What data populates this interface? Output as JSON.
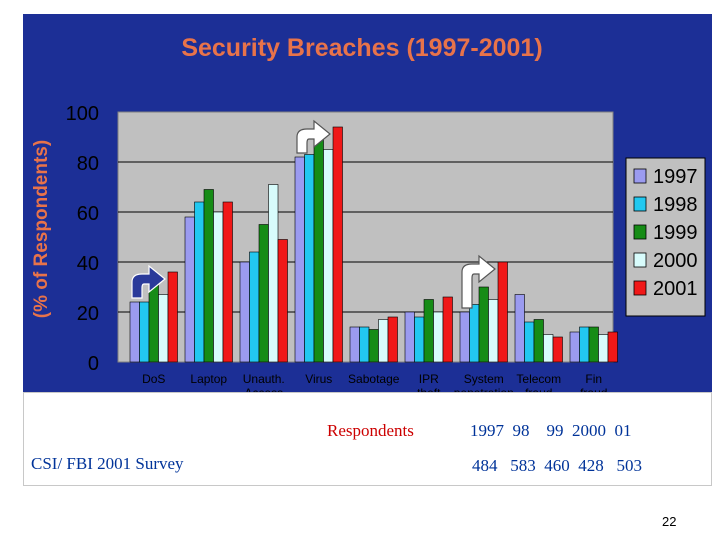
{
  "slide": {
    "respondents_label": "Respondents",
    "respondents_years": "1997  98    99  2000  01",
    "respondents_counts": "484   583  460  428   503",
    "survey_label": "CSI/ FBI 2001 Survey",
    "page_number": "22"
  },
  "colors": {
    "panel_bg": "#1c2f96",
    "plot_bg": "#c0c0c0",
    "title": "#e8734a",
    "ylabel": "#e8734a",
    "tick_text": "#000000",
    "series": [
      "#9b9bf0",
      "#22c8f0",
      "#168c16",
      "#d8fcfc",
      "#f01818"
    ],
    "arrow_dark": "#2a3a9a",
    "arrow_light": "#ffffff"
  },
  "chart_data": {
    "type": "bar",
    "title": "Security Breaches (1997-2001)",
    "ylabel": "(% of Respondents)",
    "xlabel": "",
    "ylim": [
      0,
      100
    ],
    "yticks": [
      0,
      20,
      40,
      60,
      80,
      100
    ],
    "grid": true,
    "legend_position": "right",
    "categories": [
      [
        "DoS"
      ],
      [
        "Laptop"
      ],
      [
        "Unauth.",
        "Access"
      ],
      [
        "Virus"
      ],
      [
        "Sabotage"
      ],
      [
        "IPR",
        "theft"
      ],
      [
        "System",
        "penetration"
      ],
      [
        "Telecom",
        "fraud"
      ],
      [
        "Fin",
        "fraud"
      ]
    ],
    "series": [
      {
        "name": "1997",
        "values": [
          24,
          58,
          40,
          82,
          14,
          20,
          20,
          27,
          12
        ]
      },
      {
        "name": "1998",
        "values": [
          24,
          64,
          44,
          83,
          14,
          18,
          23,
          16,
          14
        ]
      },
      {
        "name": "1999",
        "values": [
          31,
          69,
          55,
          90,
          13,
          25,
          30,
          17,
          14
        ]
      },
      {
        "name": "2000",
        "values": [
          27,
          60,
          71,
          85,
          17,
          20,
          25,
          11,
          11
        ]
      },
      {
        "name": "2001",
        "values": [
          36,
          64,
          49,
          94,
          18,
          26,
          40,
          10,
          12
        ]
      }
    ],
    "highlighted_categories": [
      "DoS",
      "Virus",
      "System penetration"
    ]
  }
}
